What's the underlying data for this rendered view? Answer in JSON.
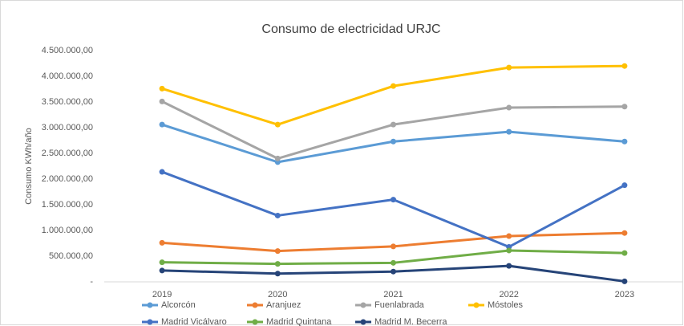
{
  "chart_data": {
    "type": "line",
    "title": "Consumo de electricidad URJC",
    "y_label": "Consumo KWh/año",
    "categories": [
      "2019",
      "2020",
      "2021",
      "2022",
      "2023"
    ],
    "series": [
      {
        "name": "Alcorcón",
        "color": "#5b9bd5",
        "values": [
          3060000,
          2330000,
          2730000,
          2920000,
          2730000
        ]
      },
      {
        "name": "Aranjuez",
        "color": "#ed7d31",
        "values": [
          760000,
          600000,
          690000,
          890000,
          950000
        ]
      },
      {
        "name": "Fuenlabrada",
        "color": "#a5a5a5",
        "values": [
          3510000,
          2400000,
          3060000,
          3390000,
          3410000
        ]
      },
      {
        "name": "Móstoles",
        "color": "#ffc000",
        "values": [
          3760000,
          3060000,
          3810000,
          4170000,
          4200000
        ]
      },
      {
        "name": "Madrid Vicálvaro",
        "color": "#4472c4",
        "values": [
          2140000,
          1290000,
          1600000,
          680000,
          1880000
        ]
      },
      {
        "name": "Madrid Quintana",
        "color": "#70ad47",
        "values": [
          380000,
          350000,
          370000,
          610000,
          560000
        ]
      },
      {
        "name": "Madrid M. Becerra",
        "color": "#264478",
        "values": [
          220000,
          160000,
          200000,
          310000,
          10000
        ]
      }
    ],
    "ylim": [
      0,
      4500000
    ],
    "yticks": [
      {
        "value": 0,
        "label": "-"
      },
      {
        "value": 500000,
        "label": "500.000,00"
      },
      {
        "value": 1000000,
        "label": "1.000.000,00"
      },
      {
        "value": 1500000,
        "label": "1.500.000,00"
      },
      {
        "value": 2000000,
        "label": "2.000.000,00"
      },
      {
        "value": 2500000,
        "label": "2.500.000,00"
      },
      {
        "value": 3000000,
        "label": "3.000.000,00"
      },
      {
        "value": 3500000,
        "label": "3.500.000,00"
      },
      {
        "value": 4000000,
        "label": "4.000.000,00"
      },
      {
        "value": 4500000,
        "label": "4.500.000,00"
      }
    ],
    "grid": false,
    "legend": "bottom"
  }
}
